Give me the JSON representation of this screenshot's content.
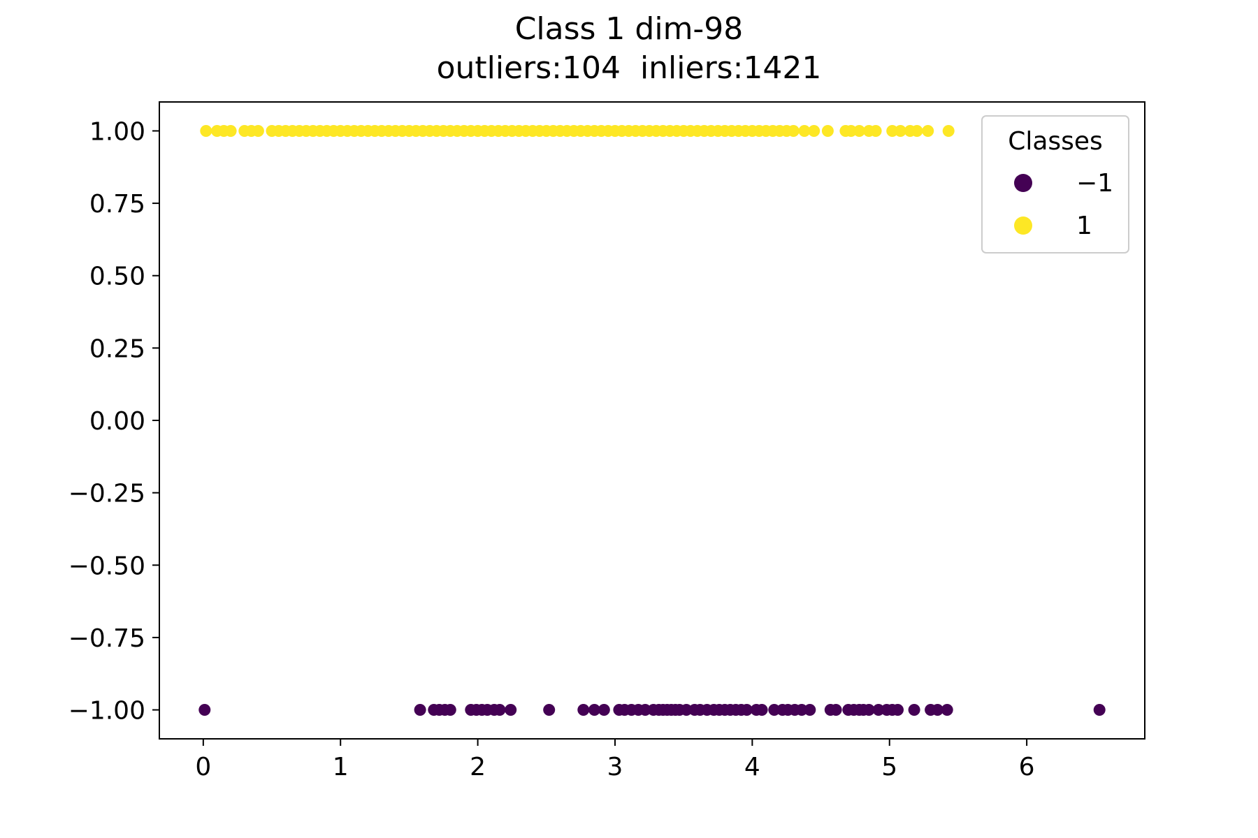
{
  "chart_data": {
    "type": "scatter",
    "title": "Class 1 dim-98",
    "subtitle": "outliers:104  inliers:1421",
    "xlabel": "",
    "ylabel": "",
    "xlim": [
      -0.32,
      6.86
    ],
    "ylim": [
      -1.1,
      1.1
    ],
    "x_ticks": [
      0,
      1,
      2,
      3,
      4,
      5,
      6
    ],
    "x_tick_labels": [
      "0",
      "1",
      "2",
      "3",
      "4",
      "5",
      "6"
    ],
    "y_ticks": [
      1.0,
      0.75,
      0.5,
      0.25,
      0.0,
      -0.25,
      -0.5,
      -0.75,
      -1.0
    ],
    "y_tick_labels": [
      "1.00",
      "0.75",
      "0.50",
      "0.25",
      "0.00",
      "−0.25",
      "−0.50",
      "−0.75",
      "−1.00"
    ],
    "grid": false,
    "legend": {
      "title": "Classes",
      "placement": "upper-right",
      "entries": [
        {
          "label": "−1",
          "color": "#440154"
        },
        {
          "label": "1",
          "color": "#fde725"
        }
      ]
    },
    "series": [
      {
        "name": "1",
        "color": "#fde725",
        "y": 1.0,
        "x": [
          0.02,
          0.1,
          0.15,
          0.2,
          0.3,
          0.35,
          0.4,
          0.5,
          0.55,
          0.6,
          0.65,
          0.7,
          0.75,
          0.8,
          0.85,
          0.9,
          0.95,
          1.0,
          1.05,
          1.1,
          1.15,
          1.2,
          1.25,
          1.3,
          1.35,
          1.4,
          1.45,
          1.5,
          1.55,
          1.6,
          1.65,
          1.7,
          1.75,
          1.8,
          1.85,
          1.9,
          1.95,
          2.0,
          2.05,
          2.1,
          2.15,
          2.2,
          2.25,
          2.3,
          2.35,
          2.4,
          2.45,
          2.5,
          2.55,
          2.6,
          2.65,
          2.7,
          2.75,
          2.8,
          2.85,
          2.9,
          2.95,
          3.0,
          3.05,
          3.1,
          3.15,
          3.2,
          3.25,
          3.3,
          3.35,
          3.4,
          3.45,
          3.5,
          3.55,
          3.6,
          3.65,
          3.7,
          3.75,
          3.8,
          3.85,
          3.9,
          3.95,
          4.0,
          4.05,
          4.1,
          4.15,
          4.2,
          4.25,
          4.3,
          4.38,
          4.45,
          4.55,
          4.68,
          4.72,
          4.78,
          4.85,
          4.9,
          5.02,
          5.08,
          5.15,
          5.2,
          5.28,
          5.43
        ]
      },
      {
        "name": "−1",
        "color": "#440154",
        "y": -1.0,
        "x": [
          0.01,
          1.58,
          1.68,
          1.72,
          1.76,
          1.8,
          1.95,
          1.99,
          2.03,
          2.07,
          2.12,
          2.16,
          2.24,
          2.52,
          2.77,
          2.85,
          2.92,
          3.03,
          3.07,
          3.12,
          3.17,
          3.22,
          3.28,
          3.32,
          3.35,
          3.38,
          3.41,
          3.44,
          3.47,
          3.52,
          3.58,
          3.62,
          3.67,
          3.72,
          3.76,
          3.8,
          3.84,
          3.88,
          3.92,
          3.96,
          4.03,
          4.07,
          4.16,
          4.22,
          4.26,
          4.31,
          4.36,
          4.42,
          4.57,
          4.61,
          4.7,
          4.74,
          4.78,
          4.81,
          4.85,
          4.92,
          4.98,
          5.02,
          5.06,
          5.18,
          5.3,
          5.35,
          5.42,
          6.53
        ]
      }
    ]
  }
}
